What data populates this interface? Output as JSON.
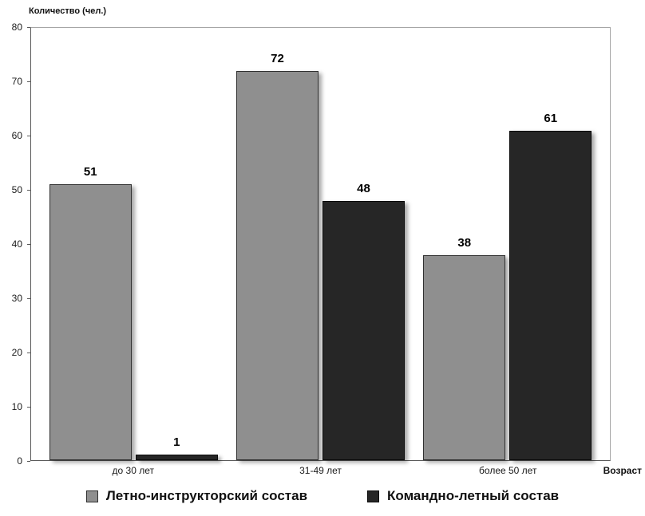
{
  "chart_data": {
    "type": "bar",
    "title": "",
    "ylabel": "Количество (чел.)",
    "xlabel": "Возраст",
    "ylim": [
      0,
      80
    ],
    "ytick_step": 10,
    "grid": false,
    "legend_position": "bottom",
    "categories": [
      "до 30 лет",
      "31-49 лет",
      "более 50 лет"
    ],
    "series": [
      {
        "name": "Летно-инструкторский состав",
        "color": "#8f8f8f",
        "border": "#303030",
        "values": [
          51,
          72,
          38
        ]
      },
      {
        "name": "Командно-летный состав",
        "color": "#262626",
        "border": "#0a0a0a",
        "values": [
          1,
          48,
          61
        ]
      }
    ]
  }
}
